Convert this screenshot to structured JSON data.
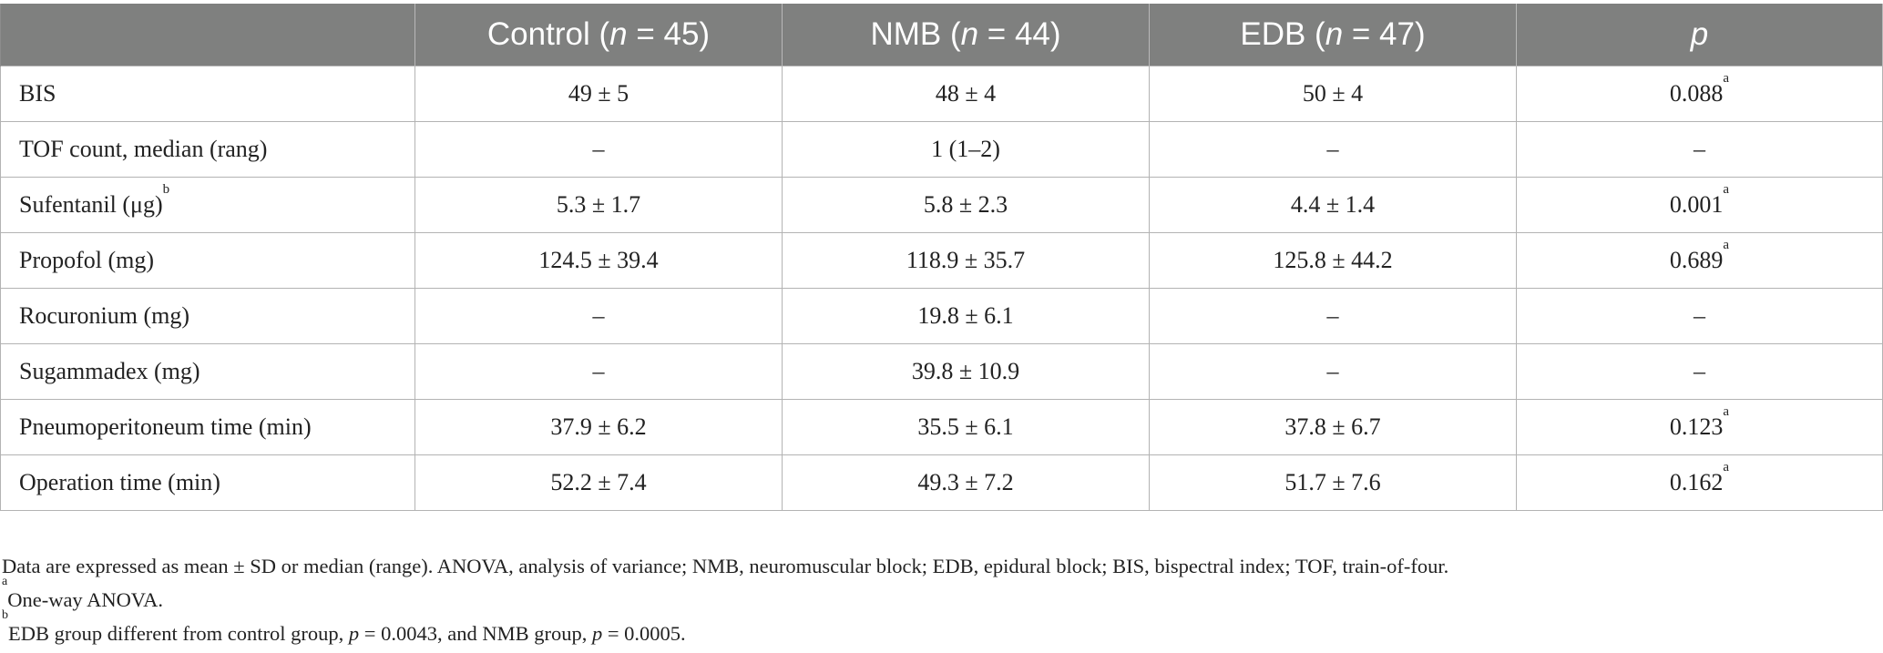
{
  "table": {
    "header": {
      "col0": "",
      "col1": {
        "name": "Control (",
        "n_var": "n",
        "n_val": " = 45)"
      },
      "col2": {
        "name": "NMB (",
        "n_var": "n",
        "n_val": " = 44)"
      },
      "col3": {
        "name": "EDB (",
        "n_var": "n",
        "n_val": " = 47)"
      },
      "col4": "p"
    },
    "rows": [
      {
        "label": "BIS",
        "label_sup": "",
        "control": "49 ± 5",
        "nmb": "48 ± 4",
        "edb": "50 ± 4",
        "p": "0.088",
        "p_sup": "a"
      },
      {
        "label": "TOF count, median (rang)",
        "label_sup": "",
        "control": "–",
        "nmb": "1 (1–2)",
        "edb": "–",
        "p": "–",
        "p_sup": ""
      },
      {
        "label": "Sufentanil (μg)",
        "label_sup": "b",
        "control": "5.3 ± 1.7",
        "nmb": "5.8 ± 2.3",
        "edb": "4.4 ± 1.4",
        "p": "0.001",
        "p_sup": "a"
      },
      {
        "label": "Propofol (mg)",
        "label_sup": "",
        "control": "124.5 ± 39.4",
        "nmb": "118.9 ± 35.7",
        "edb": "125.8 ± 44.2",
        "p": "0.689",
        "p_sup": "a"
      },
      {
        "label": "Rocuronium (mg)",
        "label_sup": "",
        "control": "–",
        "nmb": "19.8 ± 6.1",
        "edb": "–",
        "p": "–",
        "p_sup": ""
      },
      {
        "label": "Sugammadex (mg)",
        "label_sup": "",
        "control": "–",
        "nmb": "39.8 ± 10.9",
        "edb": "–",
        "p": "–",
        "p_sup": ""
      },
      {
        "label": "Pneumoperitoneum time (min)",
        "label_sup": "",
        "control": "37.9 ± 6.2",
        "nmb": "35.5 ± 6.1",
        "edb": "37.8 ± 6.7",
        "p": "0.123",
        "p_sup": "a"
      },
      {
        "label": "Operation time (min)",
        "label_sup": "",
        "control": "52.2 ± 7.4",
        "nmb": "49.3 ± 7.2",
        "edb": "51.7 ± 7.6",
        "p": "0.162",
        "p_sup": "a"
      }
    ]
  },
  "footnotes": {
    "main": "Data are expressed as mean ± SD or median (range). ANOVA, analysis of variance; NMB, neuromuscular block; EDB, epidural block; BIS, bispectral index; TOF, train-of-four.",
    "a_mark": "a",
    "a_text": "One-way ANOVA.",
    "b_mark": "b",
    "b_text_1": "EDB group different from control group, ",
    "b_p1_var": "p",
    "b_p1_val": " = 0.0043, and NMB group, ",
    "b_p2_var": "p",
    "b_p2_val": " = 0.0005."
  }
}
